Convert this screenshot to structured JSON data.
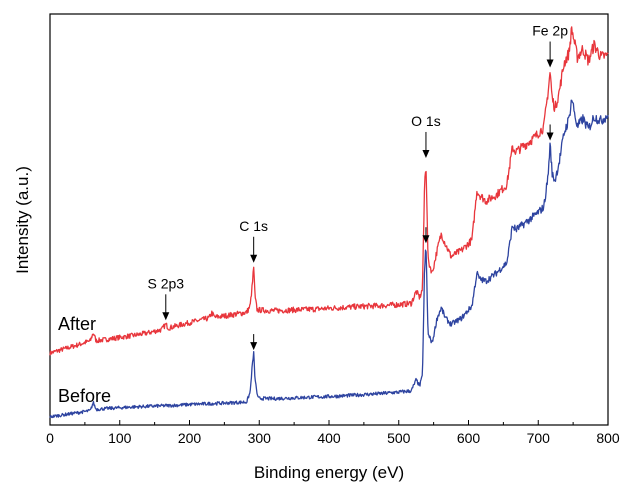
{
  "chart_data": {
    "type": "line",
    "title": "",
    "xlabel": "Binding energy (eV)",
    "ylabel": "Intensity (a.u.)",
    "xlim": [
      0,
      800
    ],
    "ylim": [
      0,
      100
    ],
    "x_ticks": [
      0,
      100,
      200,
      300,
      400,
      500,
      600,
      700,
      800
    ],
    "y_ticks_shown": false,
    "grid": false,
    "legend": "none",
    "series": [
      {
        "name": "After",
        "color": "#e8363c",
        "points": [
          [
            0,
            17.5
          ],
          [
            20,
            18.5
          ],
          [
            40,
            19.5
          ],
          [
            58,
            20.5
          ],
          [
            62,
            22.5
          ],
          [
            66,
            20.5
          ],
          [
            80,
            20.8
          ],
          [
            100,
            21.3
          ],
          [
            120,
            21.8
          ],
          [
            140,
            22.4
          ],
          [
            160,
            23.2
          ],
          [
            166,
            24.5
          ],
          [
            170,
            23.6
          ],
          [
            190,
            24.5
          ],
          [
            210,
            25.3
          ],
          [
            228,
            26.0
          ],
          [
            232,
            27.3
          ],
          [
            236,
            26.2
          ],
          [
            260,
            26.8
          ],
          [
            282,
            27.4
          ],
          [
            287,
            29.0
          ],
          [
            290,
            34.0
          ],
          [
            292,
            38.5
          ],
          [
            294,
            31.0
          ],
          [
            297,
            28.0
          ],
          [
            320,
            27.8
          ],
          [
            350,
            28.0
          ],
          [
            380,
            28.2
          ],
          [
            410,
            28.5
          ],
          [
            440,
            28.8
          ],
          [
            470,
            29.0
          ],
          [
            500,
            29.3
          ],
          [
            518,
            29.6
          ],
          [
            525,
            32.5
          ],
          [
            530,
            31.0
          ],
          [
            534,
            33.0
          ],
          [
            537,
            58.5
          ],
          [
            539,
            64.0
          ],
          [
            542,
            40.0
          ],
          [
            548,
            37.0
          ],
          [
            555,
            42.5
          ],
          [
            561,
            46.5
          ],
          [
            567,
            44.0
          ],
          [
            575,
            41.0
          ],
          [
            590,
            42.5
          ],
          [
            605,
            45.0
          ],
          [
            612,
            57.0
          ],
          [
            616,
            56.0
          ],
          [
            625,
            54.5
          ],
          [
            640,
            56.0
          ],
          [
            655,
            58.5
          ],
          [
            663,
            67.5
          ],
          [
            668,
            66.5
          ],
          [
            680,
            68.0
          ],
          [
            695,
            70.0
          ],
          [
            708,
            72.5
          ],
          [
            714,
            81.0
          ],
          [
            717,
            86.0
          ],
          [
            720,
            79.5
          ],
          [
            724,
            77.0
          ],
          [
            730,
            81.0
          ],
          [
            737,
            88.0
          ],
          [
            744,
            90.5
          ],
          [
            748,
            96.5
          ],
          [
            752,
            93.0
          ],
          [
            756,
            89.5
          ],
          [
            764,
            91.5
          ],
          [
            772,
            88.5
          ],
          [
            780,
            92.5
          ],
          [
            790,
            89.5
          ],
          [
            800,
            90.0
          ]
        ]
      },
      {
        "name": "Before",
        "color": "#2e44a0",
        "points": [
          [
            0,
            2.0
          ],
          [
            20,
            2.5
          ],
          [
            40,
            3.0
          ],
          [
            58,
            3.5
          ],
          [
            62,
            5.5
          ],
          [
            66,
            3.8
          ],
          [
            80,
            4.0
          ],
          [
            100,
            4.2
          ],
          [
            120,
            4.4
          ],
          [
            150,
            4.6
          ],
          [
            180,
            4.8
          ],
          [
            200,
            5.0
          ],
          [
            230,
            5.2
          ],
          [
            260,
            5.4
          ],
          [
            282,
            5.6
          ],
          [
            287,
            8.0
          ],
          [
            290,
            14.5
          ],
          [
            292,
            17.5
          ],
          [
            294,
            11.0
          ],
          [
            298,
            6.5
          ],
          [
            320,
            6.4
          ],
          [
            350,
            6.6
          ],
          [
            380,
            6.8
          ],
          [
            410,
            7.0
          ],
          [
            440,
            7.3
          ],
          [
            470,
            7.6
          ],
          [
            500,
            8.0
          ],
          [
            518,
            8.3
          ],
          [
            525,
            11.0
          ],
          [
            530,
            9.5
          ],
          [
            534,
            12.0
          ],
          [
            537,
            38.0
          ],
          [
            539,
            43.5
          ],
          [
            542,
            22.0
          ],
          [
            548,
            20.0
          ],
          [
            555,
            26.0
          ],
          [
            561,
            28.5
          ],
          [
            567,
            26.0
          ],
          [
            575,
            24.5
          ],
          [
            590,
            26.0
          ],
          [
            605,
            29.0
          ],
          [
            612,
            37.0
          ],
          [
            616,
            35.5
          ],
          [
            625,
            35.0
          ],
          [
            640,
            37.0
          ],
          [
            655,
            39.5
          ],
          [
            663,
            48.5
          ],
          [
            668,
            47.5
          ],
          [
            680,
            49.0
          ],
          [
            695,
            51.0
          ],
          [
            708,
            53.0
          ],
          [
            714,
            60.5
          ],
          [
            717,
            68.5
          ],
          [
            720,
            61.0
          ],
          [
            724,
            59.5
          ],
          [
            730,
            64.0
          ],
          [
            737,
            71.0
          ],
          [
            744,
            74.5
          ],
          [
            748,
            79.5
          ],
          [
            752,
            76.0
          ],
          [
            756,
            72.5
          ],
          [
            764,
            74.5
          ],
          [
            772,
            72.0
          ],
          [
            780,
            75.0
          ],
          [
            790,
            74.0
          ],
          [
            800,
            75.5
          ]
        ]
      }
    ],
    "series_labels": [
      "After",
      "Before"
    ],
    "annotations": [
      {
        "text": "S 2p3",
        "x": 166,
        "series": 0
      },
      {
        "text": "C 1s",
        "x": 292,
        "series": 0
      },
      {
        "text": "O 1s",
        "x": 539,
        "series": 0
      },
      {
        "text": "Fe 2p",
        "x": 717,
        "series": 0
      }
    ],
    "before_arrows_x": [
      292,
      539,
      717
    ]
  }
}
